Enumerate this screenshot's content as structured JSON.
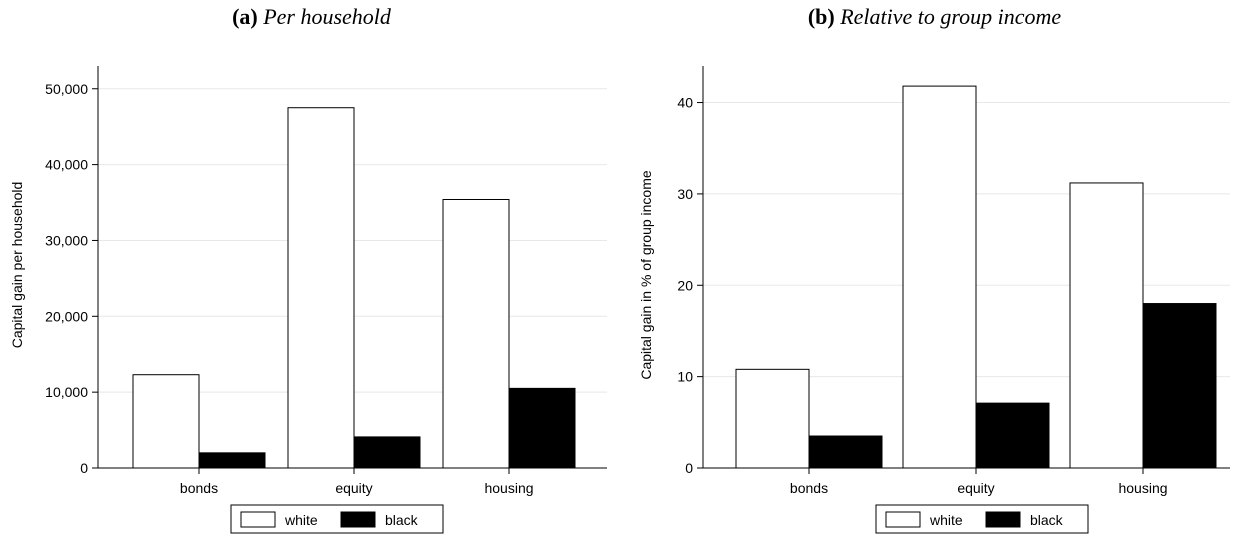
{
  "chart_data": [
    {
      "type": "bar",
      "panel_label": "(a)",
      "title": "Per household",
      "ylabel": "Capital gain per household",
      "xlabel": "",
      "categories": [
        "bonds",
        "equity",
        "housing"
      ],
      "series": [
        {
          "name": "white",
          "values": [
            12300,
            47500,
            35400
          ],
          "color": "#ffffff"
        },
        {
          "name": "black",
          "values": [
            2000,
            4100,
            10500
          ],
          "color": "#000000"
        }
      ],
      "ylim": [
        0,
        53000
      ],
      "yticks": [
        0,
        10000,
        20000,
        30000,
        40000,
        50000
      ],
      "ytick_labels": [
        "0",
        "10,000",
        "20,000",
        "30,000",
        "40,000",
        "50,000"
      ],
      "grid": true,
      "legend_position": "bottom-center"
    },
    {
      "type": "bar",
      "panel_label": "(b)",
      "title": "Relative to group income",
      "ylabel": "Capital gain in % of group income",
      "xlabel": "",
      "categories": [
        "bonds",
        "equity",
        "housing"
      ],
      "series": [
        {
          "name": "white",
          "values": [
            10.8,
            41.8,
            31.2
          ],
          "color": "#ffffff"
        },
        {
          "name": "black",
          "values": [
            3.5,
            7.1,
            18.0
          ],
          "color": "#000000"
        }
      ],
      "ylim": [
        0,
        44
      ],
      "yticks": [
        0,
        10,
        20,
        30,
        40
      ],
      "ytick_labels": [
        "0",
        "10",
        "20",
        "30",
        "40"
      ],
      "grid": true,
      "legend_position": "bottom-center"
    }
  ]
}
